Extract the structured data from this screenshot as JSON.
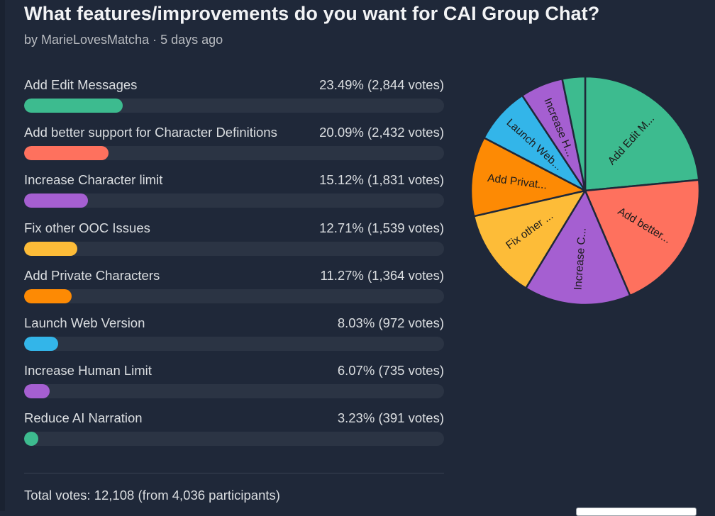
{
  "poll": {
    "title": "What features/improvements do you want for CAI Group Chat?",
    "byline": "by MarieLovesMatcha · 5 days ago",
    "total": "Total votes: 12,108 (from 4,036 participants)",
    "options": [
      {
        "label": "Add Edit Messages",
        "stat": "23.49% (2,844 votes)",
        "pct": 23.49,
        "color": "#3dbb8f",
        "pie_label": "Add Edit M..."
      },
      {
        "label": "Add better support for Character Definitions",
        "stat": "20.09% (2,432 votes)",
        "pct": 20.09,
        "color": "#fe715e",
        "pie_label": "Add better..."
      },
      {
        "label": "Increase Character limit",
        "stat": "15.12% (1,831 votes)",
        "pct": 15.12,
        "color": "#a55fd1",
        "pie_label": "Increase C..."
      },
      {
        "label": "Fix other OOC Issues",
        "stat": "12.71% (1,539 votes)",
        "pct": 12.71,
        "color": "#fdbc38",
        "pie_label": "Fix other ..."
      },
      {
        "label": "Add Private Characters",
        "stat": "11.27% (1,364 votes)",
        "pct": 11.27,
        "color": "#fd8a04",
        "pie_label": "Add Privat..."
      },
      {
        "label": "Launch Web Version",
        "stat": "8.03% (972 votes)",
        "pct": 8.03,
        "color": "#33b5e9",
        "pie_label": "Launch Web..."
      },
      {
        "label": "Increase Human Limit",
        "stat": "6.07% (735 votes)",
        "pct": 6.07,
        "color": "#a55fd1",
        "pie_label": "Increase H..."
      },
      {
        "label": "Reduce AI Narration",
        "stat": "3.23% (391 votes)",
        "pct": 3.23,
        "color": "#3dbb8f",
        "pie_label": ""
      }
    ]
  },
  "chart_data": {
    "type": "pie",
    "categories": [
      "Add Edit Messages",
      "Add better support for Character Definitions",
      "Increase Character limit",
      "Fix other OOC Issues",
      "Add Private Characters",
      "Launch Web Version",
      "Increase Human Limit",
      "Reduce AI Narration"
    ],
    "values": [
      23.49,
      20.09,
      15.12,
      12.71,
      11.27,
      8.03,
      6.07,
      3.23
    ],
    "slice_labels": [
      "Add Edit M...",
      "Add better...",
      "Increase C...",
      "Fix other ...",
      "Add Privat...",
      "Launch Web...",
      "Increase H...",
      ""
    ]
  }
}
